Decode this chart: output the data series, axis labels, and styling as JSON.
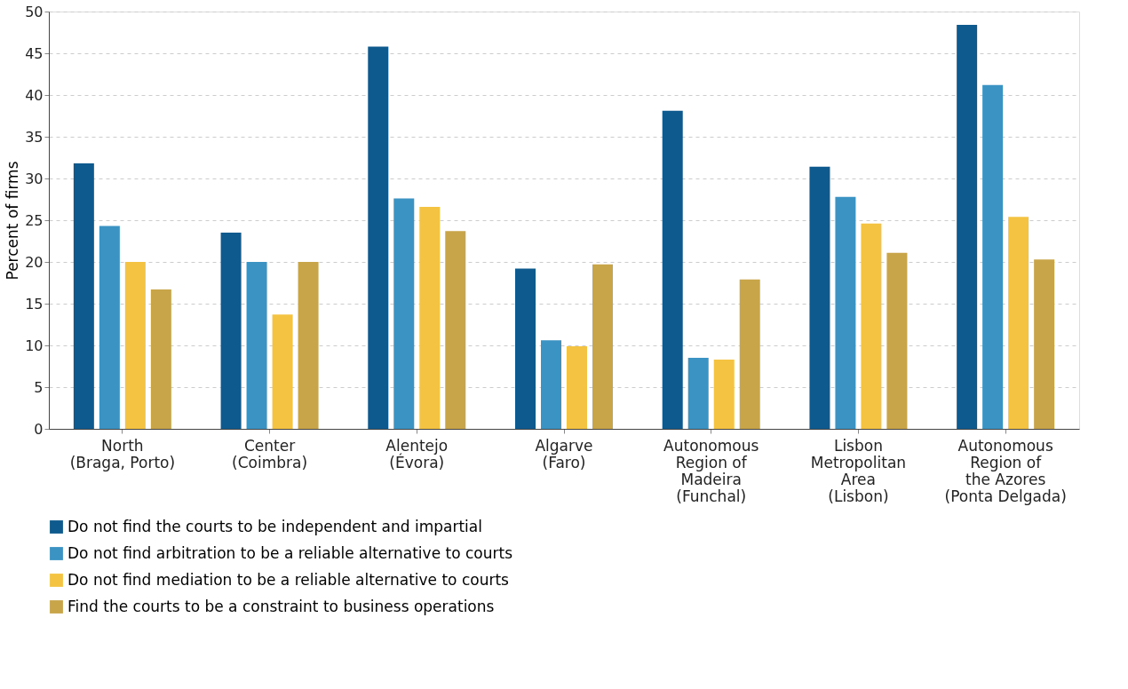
{
  "chart_data": {
    "type": "bar",
    "ylabel": "Percent of firms",
    "categories": [
      "North\n(Braga, Porto)",
      "Center\n(Coimbra)",
      "Alentejo\n(Évora)",
      "Algarve\n(Faro)",
      "Autonomous\nRegion of\nMadeira\n(Funchal)",
      "Lisbon\nMetropolitan\nArea\n(Lisbon)",
      "Autonomous\nRegion of\nthe Azores\n(Ponta Delgada)"
    ],
    "series": [
      {
        "name": "Do not find the courts to be independent and impartial",
        "color": "#0e5a8e",
        "values": [
          31.8,
          23.5,
          45.8,
          19.2,
          38.1,
          31.4,
          48.4
        ]
      },
      {
        "name": "Do not find arbitration to be a reliable alternative to courts",
        "color": "#3a93c3",
        "values": [
          24.3,
          20.0,
          27.6,
          10.6,
          8.5,
          27.8,
          41.2
        ]
      },
      {
        "name": "Do not find mediation to be a reliable alternative to courts",
        "color": "#f5c342",
        "values": [
          20.0,
          13.7,
          26.6,
          9.9,
          8.3,
          24.6,
          25.4
        ]
      },
      {
        "name": "Find the courts to be a constraint to business operations",
        "color": "#c9a54a",
        "values": [
          16.7,
          20.0,
          23.7,
          19.7,
          17.9,
          21.1,
          20.3
        ]
      }
    ],
    "ylim": [
      0,
      50
    ],
    "yticks": [
      0,
      5,
      10,
      15,
      20,
      25,
      30,
      35,
      40,
      45,
      50
    ],
    "grid": "y",
    "legend": "bottom"
  }
}
